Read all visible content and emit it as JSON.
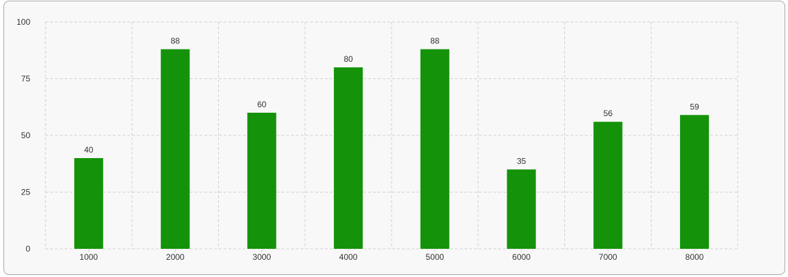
{
  "chart_data": {
    "type": "bar",
    "categories": [
      "1000",
      "2000",
      "3000",
      "4000",
      "5000",
      "6000",
      "7000",
      "8000"
    ],
    "values": [
      40,
      88,
      60,
      80,
      88,
      35,
      56,
      59
    ],
    "ylim": [
      0,
      100
    ],
    "yticks": [
      0,
      25,
      50,
      75,
      100
    ],
    "grid": true,
    "data_labels": true,
    "bar_color": "#14930a",
    "grid_color": "#d0d0d0",
    "background_color": "#f8f8f8"
  }
}
